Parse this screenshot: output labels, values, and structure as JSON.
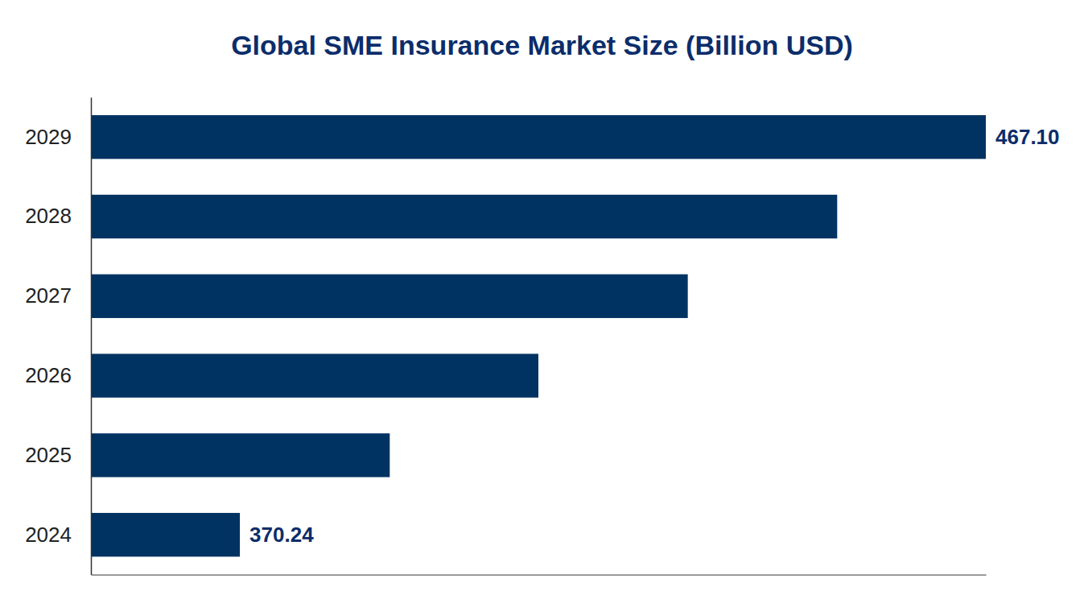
{
  "chart_data": {
    "type": "bar",
    "orientation": "horizontal",
    "title": "Global SME Insurance Market Size (Billion USD)",
    "categories": [
      "2024",
      "2025",
      "2026",
      "2027",
      "2028",
      "2029"
    ],
    "values": [
      370.24,
      389.7,
      409.0,
      428.4,
      447.8,
      467.1
    ],
    "value_labels": [
      "370.24",
      null,
      null,
      null,
      null,
      "467.10"
    ],
    "data_labels": true,
    "color": "#003361",
    "xlim": [
      350.9,
      467.1
    ],
    "tick_labels": "y",
    "grid": false
  }
}
